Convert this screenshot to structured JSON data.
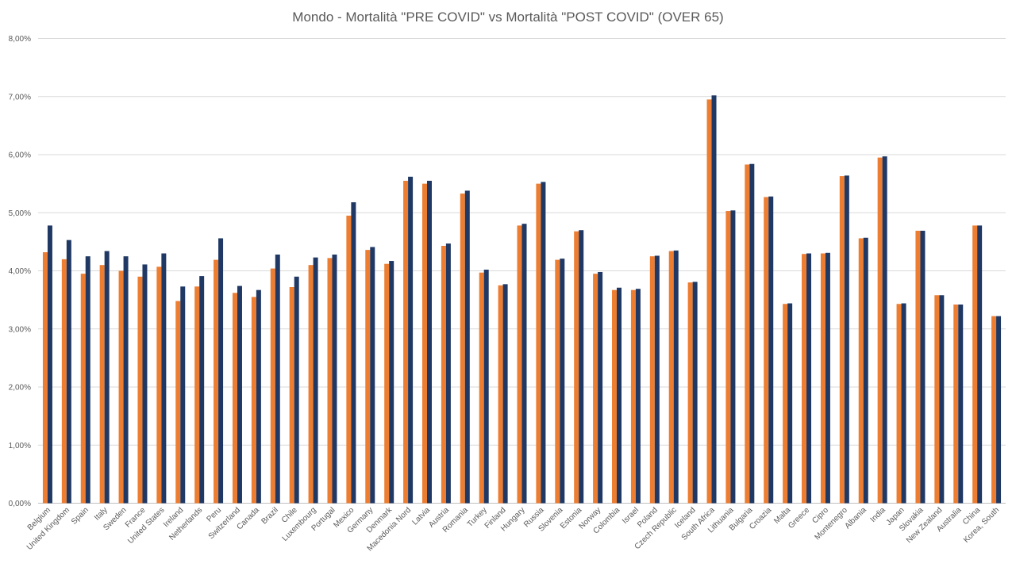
{
  "chart_data": {
    "type": "bar",
    "title": "Mondo - Mortalità \"PRE COVID\" vs Mortalità \"POST COVID\" (OVER 65)",
    "xlabel": "",
    "ylabel": "",
    "ylim": [
      0,
      8
    ],
    "yticks": [
      "0,00%",
      "1,00%",
      "2,00%",
      "3,00%",
      "4,00%",
      "5,00%",
      "6,00%",
      "7,00%",
      "8,00%"
    ],
    "grid": true,
    "legend": "none",
    "categories": [
      "Belgium",
      "United Kingdom",
      "Spain",
      "Italy",
      "Sweden",
      "France",
      "United States",
      "Ireland",
      "Netherlands",
      "Peru",
      "Switzerland",
      "Canada",
      "Brazil",
      "Chile",
      "Luxembourg",
      "Portugal",
      "Mexico",
      "Germany",
      "Denmark",
      "Macedonia Nord",
      "Latvia",
      "Austria",
      "Romania",
      "Turkey",
      "Finland",
      "Hungary",
      "Russia",
      "Slovenia",
      "Estonia",
      "Norway",
      "Colombia",
      "Israel",
      "Poland",
      "Czech Republic",
      "Iceland",
      "South Africa",
      "Lithuania",
      "Bulgaria",
      "Croazia",
      "Malta",
      "Greece",
      "Cipro",
      "Montenegro",
      "Albania",
      "India",
      "Japan",
      "Slovakia",
      "New Zealand",
      "Australia",
      "China",
      "Korea, South"
    ],
    "series": [
      {
        "color": "#ed7d31",
        "values": [
          4.32,
          4.2,
          3.95,
          4.1,
          4.0,
          3.9,
          4.07,
          3.48,
          3.73,
          4.19,
          3.62,
          3.55,
          4.04,
          3.72,
          4.1,
          4.22,
          4.95,
          4.36,
          4.12,
          5.55,
          5.5,
          4.43,
          5.33,
          3.97,
          3.75,
          4.78,
          5.5,
          4.19,
          4.68,
          3.95,
          3.67,
          3.67,
          4.25,
          4.34,
          3.8,
          6.95,
          5.03,
          5.83,
          5.27,
          3.43,
          4.29,
          4.3,
          5.63,
          4.56,
          5.95,
          3.43,
          4.69,
          3.58,
          3.42,
          4.78,
          3.22
        ]
      },
      {
        "color": "#203864",
        "values": [
          4.78,
          4.53,
          4.25,
          4.34,
          4.25,
          4.11,
          4.3,
          3.73,
          3.91,
          4.56,
          3.74,
          3.67,
          4.28,
          3.9,
          4.23,
          4.28,
          5.18,
          4.41,
          4.17,
          5.62,
          5.55,
          4.47,
          5.38,
          4.02,
          3.77,
          4.81,
          5.53,
          4.21,
          4.7,
          3.98,
          3.71,
          3.69,
          4.26,
          4.35,
          3.81,
          7.02,
          5.04,
          5.84,
          5.28,
          3.44,
          4.3,
          4.31,
          5.64,
          4.57,
          5.97,
          3.44,
          4.69,
          3.58,
          3.42,
          4.78,
          3.22
        ]
      }
    ]
  }
}
